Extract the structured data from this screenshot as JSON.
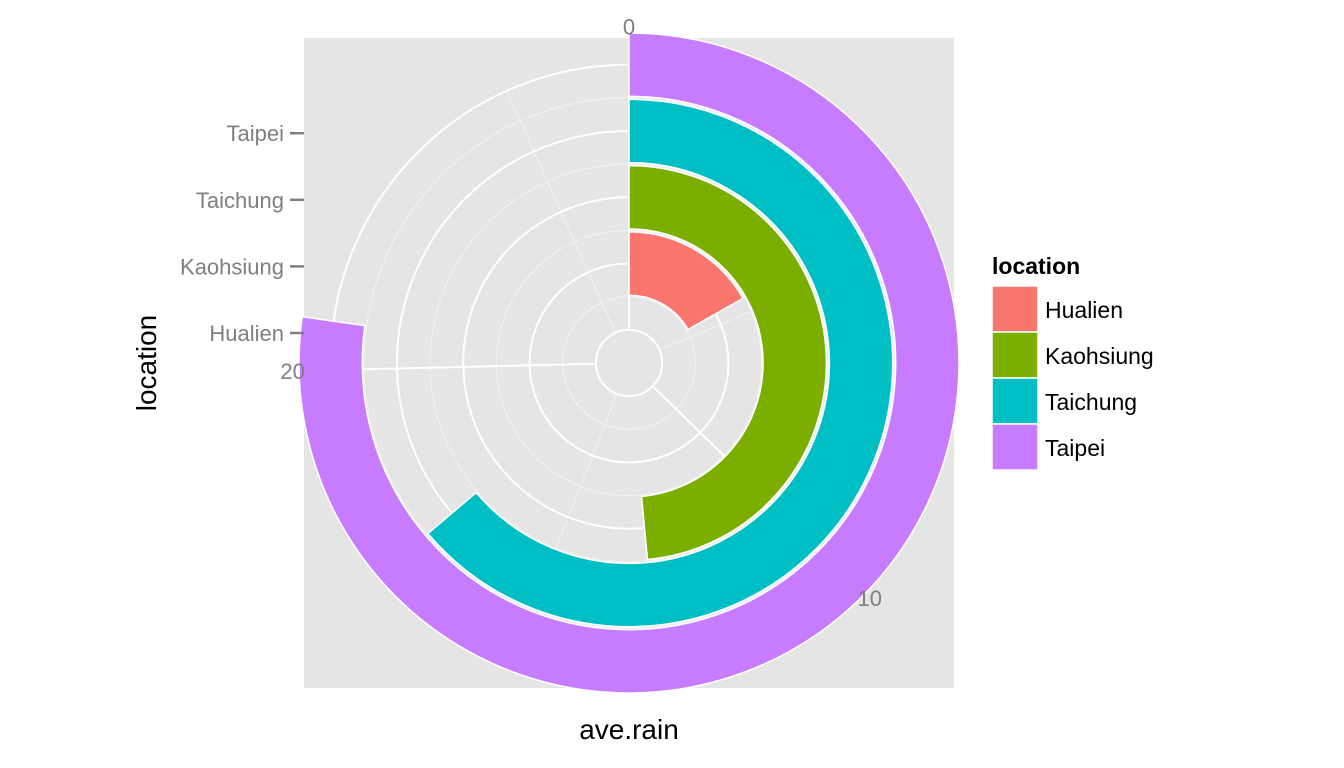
{
  "chart_data": {
    "type": "bar",
    "coord": "polar",
    "theta_axis": "ave.rain",
    "radial_axis": "location",
    "xlabel": "ave.rain",
    "ylabel": "location",
    "categories": [
      "Hualien",
      "Kaohsiung",
      "Taichung",
      "Taipei"
    ],
    "values": [
      4.5,
      13,
      17.1,
      20.7
    ],
    "theta_ticks": [
      "0",
      "10",
      "20"
    ],
    "theta_range": [
      0,
      26.8
    ],
    "grid": true,
    "legend": {
      "title": "location",
      "position": "right",
      "entries": [
        "Hualien",
        "Kaohsiung",
        "Taichung",
        "Taipei"
      ]
    },
    "colors": {
      "Hualien": "#F8766D",
      "Kaohsiung": "#7CAE00",
      "Taichung": "#00BFC4",
      "Taipei": "#C77CFF"
    },
    "panel_background": "#e5e5e5",
    "grid_color": "#ffffff"
  }
}
